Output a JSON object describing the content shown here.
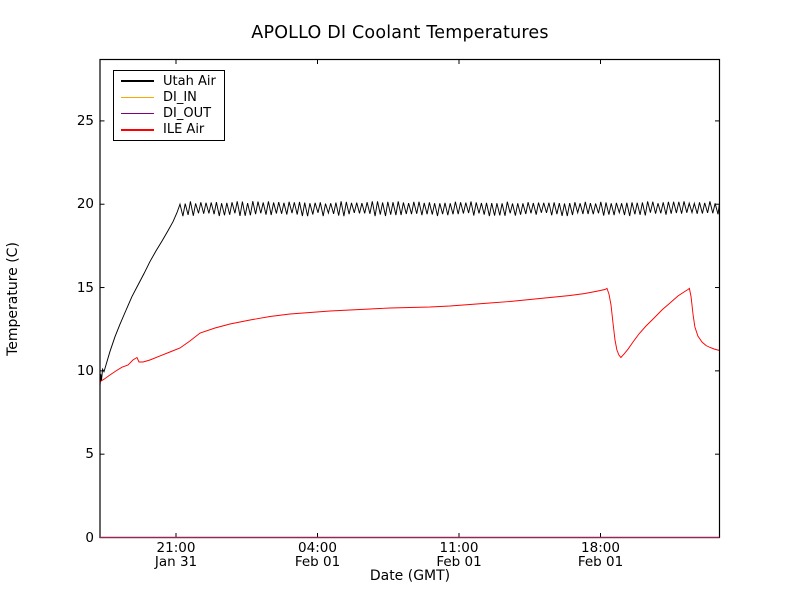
{
  "figure": {
    "background_color": "#ffffff",
    "plot_border_color": "#000000"
  },
  "chart_data": {
    "type": "line",
    "title": "APOLLO DI Coolant Temperatures",
    "xlabel": "Date (GMT)",
    "ylabel": "Temperature (C)",
    "ylim": [
      0,
      28.7
    ],
    "grid": false,
    "legend_position": "upper left",
    "y_ticks": [
      "0",
      "5",
      "10",
      "15",
      "20",
      "25"
    ],
    "y_tick_values": [
      0,
      5,
      10,
      15,
      20,
      25
    ],
    "x_ticks": [
      {
        "time": "21:00",
        "date": "Jan 31"
      },
      {
        "time": "04:00",
        "date": "Feb 01"
      },
      {
        "time": "11:00",
        "date": "Feb 01"
      },
      {
        "time": "18:00",
        "date": "Feb 01"
      }
    ],
    "x_tick_hours": [
      0,
      7,
      14,
      21
    ],
    "x_hours_range": [
      -3.76,
      26.89
    ],
    "series": [
      {
        "name": "Utah Air",
        "color": "#000000",
        "points_h_degC": [
          [
            -3.76,
            9.1
          ],
          [
            -3.72,
            9.8
          ],
          [
            -3.69,
            9.4
          ],
          [
            -3.63,
            10.1
          ],
          [
            -3.56,
            9.95
          ],
          [
            -3.27,
            11.15
          ],
          [
            -3.02,
            12.05
          ],
          [
            -2.77,
            12.8
          ],
          [
            -2.47,
            13.65
          ],
          [
            -2.18,
            14.45
          ],
          [
            -1.88,
            15.15
          ],
          [
            -1.58,
            15.85
          ],
          [
            -1.29,
            16.55
          ],
          [
            -0.99,
            17.2
          ],
          [
            -0.69,
            17.8
          ],
          [
            -0.4,
            18.4
          ],
          [
            -0.15,
            18.95
          ],
          [
            0.05,
            19.5
          ],
          [
            0.2,
            20.0
          ]
        ],
        "oscillation": {
          "start_h": 0.2,
          "end_h": 26.89,
          "period_h": 0.257,
          "peak_degC": 20.1,
          "trough_degC": 19.38
        }
      },
      {
        "name": "DI_IN",
        "color": "#ffa500",
        "points_h_degC": [
          [
            -3.76,
            0.0
          ],
          [
            26.89,
            0.0
          ]
        ]
      },
      {
        "name": "DI_OUT",
        "color": "#800080",
        "points_h_degC": [
          [
            -3.76,
            0.0
          ],
          [
            26.89,
            0.0
          ]
        ]
      },
      {
        "name": "ILE Air",
        "color": "#ff0000",
        "points_h_degC": [
          [
            -3.76,
            9.35
          ],
          [
            -3.56,
            9.5
          ],
          [
            -3.27,
            9.75
          ],
          [
            -2.97,
            10.0
          ],
          [
            -2.67,
            10.22
          ],
          [
            -2.37,
            10.35
          ],
          [
            -2.13,
            10.65
          ],
          [
            -1.93,
            10.8
          ],
          [
            -1.83,
            10.53
          ],
          [
            -1.63,
            10.53
          ],
          [
            -1.29,
            10.65
          ],
          [
            -0.79,
            10.9
          ],
          [
            -0.3,
            11.13
          ],
          [
            0.2,
            11.37
          ],
          [
            0.69,
            11.79
          ],
          [
            1.19,
            12.27
          ],
          [
            1.93,
            12.57
          ],
          [
            2.67,
            12.81
          ],
          [
            3.66,
            13.05
          ],
          [
            4.65,
            13.26
          ],
          [
            5.64,
            13.41
          ],
          [
            6.63,
            13.5
          ],
          [
            7.62,
            13.59
          ],
          [
            8.61,
            13.65
          ],
          [
            9.6,
            13.71
          ],
          [
            10.59,
            13.77
          ],
          [
            11.57,
            13.8
          ],
          [
            12.56,
            13.83
          ],
          [
            13.55,
            13.89
          ],
          [
            14.54,
            13.98
          ],
          [
            15.53,
            14.07
          ],
          [
            16.52,
            14.16
          ],
          [
            17.51,
            14.28
          ],
          [
            18.5,
            14.4
          ],
          [
            19.49,
            14.52
          ],
          [
            20.23,
            14.64
          ],
          [
            20.87,
            14.79
          ],
          [
            21.22,
            14.88
          ],
          [
            21.32,
            14.95
          ],
          [
            21.42,
            14.6
          ],
          [
            21.52,
            13.95
          ],
          [
            21.62,
            12.87
          ],
          [
            21.72,
            11.85
          ],
          [
            21.81,
            11.25
          ],
          [
            21.91,
            10.95
          ],
          [
            22.01,
            10.8
          ],
          [
            22.16,
            11.0
          ],
          [
            22.36,
            11.3
          ],
          [
            22.61,
            11.73
          ],
          [
            22.9,
            12.21
          ],
          [
            23.25,
            12.69
          ],
          [
            23.65,
            13.17
          ],
          [
            24.04,
            13.65
          ],
          [
            24.44,
            14.07
          ],
          [
            24.83,
            14.49
          ],
          [
            25.13,
            14.73
          ],
          [
            25.33,
            14.88
          ],
          [
            25.4,
            14.95
          ],
          [
            25.48,
            14.43
          ],
          [
            25.58,
            13.35
          ],
          [
            25.67,
            12.63
          ],
          [
            25.82,
            12.09
          ],
          [
            26.02,
            11.73
          ],
          [
            26.22,
            11.52
          ],
          [
            26.42,
            11.4
          ],
          [
            26.62,
            11.31
          ],
          [
            26.89,
            11.22
          ]
        ]
      }
    ]
  }
}
